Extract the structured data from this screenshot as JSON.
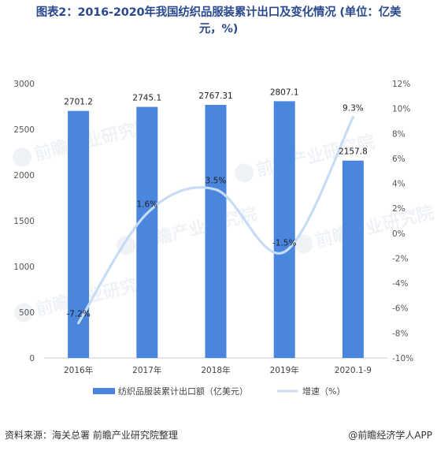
{
  "title_lines": [
    "图表2：2016-2020年我国纺织品服装累计出口及变化情况 (单位：亿美",
    "元，%)"
  ],
  "chart_data": {
    "type": "bar",
    "title": "图表2：2016-2020年我国纺织品服装累计出口及变化情况 (单位：亿美元，%)",
    "categories": [
      "2016年",
      "2017年",
      "2018年",
      "2019年",
      "2020.1-9"
    ],
    "series": [
      {
        "name": "纺织品服装累计出口额（亿美元）",
        "type": "bar",
        "axis": "left",
        "values": [
          2701.2,
          2745.1,
          2767.31,
          2807.1,
          2157.8
        ],
        "labels": [
          "2701.2",
          "2745.1",
          "2767.31",
          "2807.1",
          "2157.8"
        ],
        "color": "#4a86de"
      },
      {
        "name": "增速（%）",
        "type": "line",
        "smooth": true,
        "axis": "right",
        "values": [
          -7.2,
          1.6,
          3.5,
          -1.5,
          9.3
        ],
        "labels": [
          "-7.2%",
          "1.6%",
          "3.5%",
          "-1.5%",
          "9.3%"
        ],
        "color": "#c6dcf5"
      }
    ],
    "y_left": {
      "min": 0,
      "max": 3000,
      "ticks": [
        "0",
        "500",
        "1000",
        "1500",
        "2000",
        "2500",
        "3000"
      ]
    },
    "y_right": {
      "min": -10,
      "max": 12,
      "ticks": [
        "-10%",
        "-8%",
        "-6%",
        "-4%",
        "-2%",
        "0%",
        "2%",
        "4%",
        "6%",
        "8%",
        "10%",
        "12%"
      ]
    },
    "grid": false,
    "legend_position": "bottom"
  },
  "watermark_text": "前瞻产业研究院",
  "footer": {
    "source": "资料来源：海关总署  前瞻产业研究院整理",
    "brand": "@前瞻经济学人APP"
  }
}
